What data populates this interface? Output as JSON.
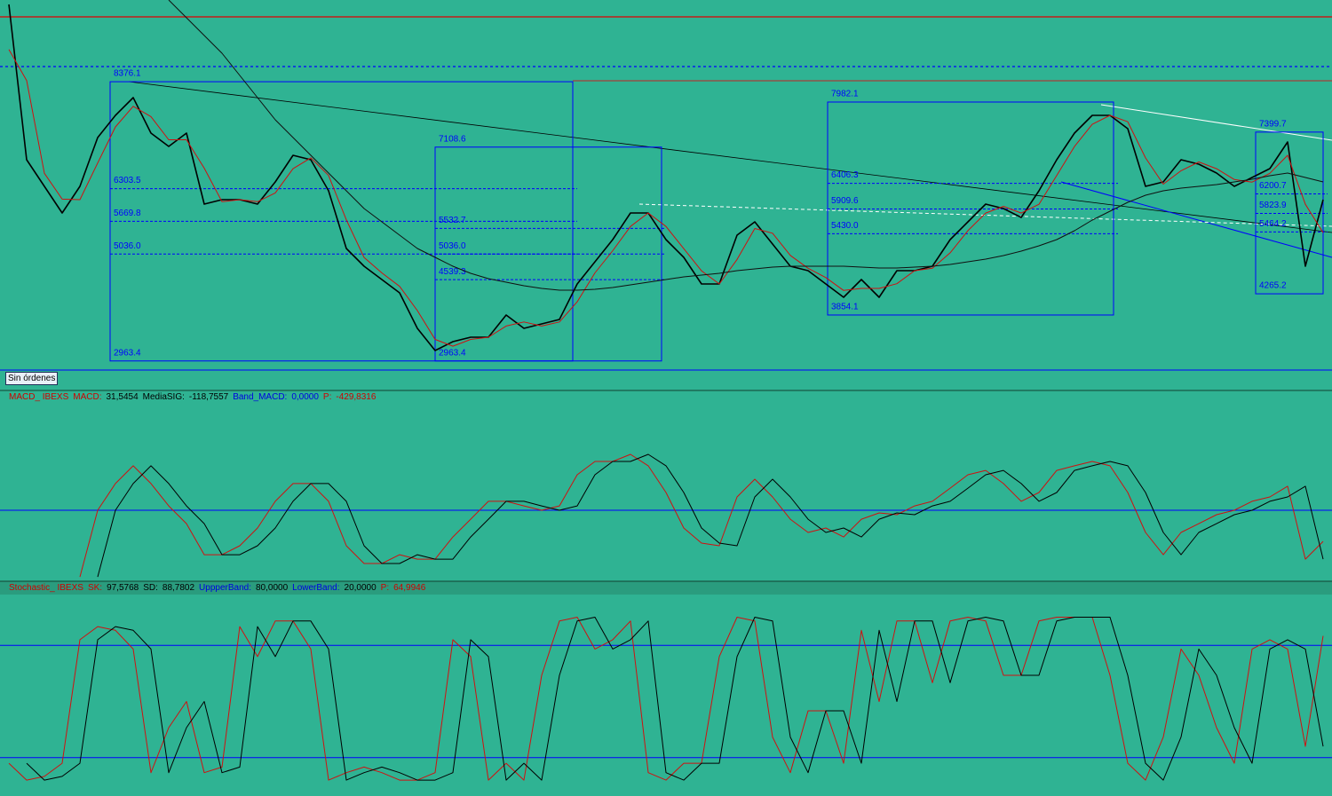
{
  "button_label": "Sin órdenes",
  "chart_data": [
    {
      "type": "line",
      "ylim": [
        2770,
        9960
      ],
      "series": [
        {
          "color": "#000000",
          "values": [
            9874,
            6864,
            6348,
            5832,
            6348,
            7294,
            7724,
            8068,
            7380,
            7122,
            7380,
            6004,
            6090,
            6090,
            6004,
            6434,
            6950,
            6864,
            6262,
            5144,
            4800,
            4542,
            4284,
            3596,
            3166,
            3338,
            3424,
            3424,
            3854,
            3596,
            3682,
            3768,
            4456,
            4886,
            5316,
            5832,
            5832,
            5316,
            4972,
            4456,
            4456,
            5402,
            5660,
            5230,
            4800,
            4714,
            4456,
            4198,
            4542,
            4198,
            4714,
            4714,
            4800,
            5316,
            5660,
            6004,
            5918,
            5746,
            6262,
            6864,
            7380,
            7724,
            7724,
            7466,
            6348,
            6434,
            6864,
            6778,
            6606,
            6348,
            6520,
            6692,
            7208,
            4800,
            6090
          ]
        },
        {
          "color": "#d01010",
          "values": [
            9000,
            8400,
            6600,
            6100,
            6090,
            6800,
            7500,
            7900,
            7700,
            7250,
            7250,
            6700,
            6050,
            6090,
            6050,
            6220,
            6690,
            6900,
            6560,
            5700,
            4970,
            4670,
            4410,
            3940,
            3380,
            3250,
            3380,
            3424,
            3640,
            3720,
            3640,
            3720,
            4110,
            4670,
            5100,
            5570,
            5832,
            5570,
            5140,
            4710,
            4456,
            4930,
            5530,
            5440,
            5010,
            4760,
            4580,
            4330,
            4370,
            4370,
            4460,
            4714,
            4760,
            5060,
            5490,
            5830,
            5960,
            5830,
            6000,
            6560,
            7120,
            7550,
            7724,
            7600,
            6900,
            6390,
            6650,
            6820,
            6690,
            6480,
            6430,
            6600,
            6950,
            6000,
            5450
          ]
        },
        {
          "color": "#101010",
          "values": [
            null,
            null,
            null,
            null,
            null,
            null,
            null,
            null,
            null,
            9960,
            9616,
            9272,
            8928,
            8498,
            8068,
            7638,
            7294,
            6950,
            6606,
            6262,
            5918,
            5660,
            5402,
            5144,
            4972,
            4800,
            4662,
            4559,
            4490,
            4422,
            4370,
            4336,
            4336,
            4353,
            4387,
            4439,
            4490,
            4542,
            4594,
            4628,
            4662,
            4714,
            4748,
            4783,
            4800,
            4800,
            4800,
            4800,
            4783,
            4766,
            4766,
            4783,
            4800,
            4834,
            4886,
            4938,
            5006,
            5092,
            5196,
            5316,
            5488,
            5694,
            5866,
            6038,
            6176,
            6262,
            6314,
            6348,
            6382,
            6434,
            6486,
            6554,
            6606,
            6520,
            6434
          ]
        }
      ],
      "hlines": [
        {
          "value": 9633,
          "color": "#e00000",
          "dashed": false
        },
        {
          "value": 8670,
          "color": "#0000ff",
          "dashed": true
        }
      ],
      "fib_boxes": [
        {
          "levels": [
            8376.1,
            6303.5,
            5669.8,
            {
              "value": 5036,
              "label": "5036.0"
            },
            2963.4
          ]
        },
        {
          "levels": [
            7108.6,
            5532.7,
            {
              "value": 5036,
              "label": "5036.0"
            },
            4539.3,
            2963.4
          ]
        },
        {
          "levels": [
            7982.1,
            6406.3,
            5909.6,
            {
              "value": 5430,
              "label": "5430.0"
            },
            3854.1
          ]
        },
        {
          "levels": [
            7399.7,
            6200.7,
            5823.9,
            5464.2,
            4265.2
          ]
        }
      ]
    },
    {
      "type": "line",
      "ylim": [
        -372,
        628
      ],
      "header": [
        {
          "text": "MACD_ IBEXS",
          "color": "#d00000"
        },
        {
          "text": "MACD:",
          "color": "#d00000"
        },
        {
          "value": 31.5454,
          "label": "31,5454",
          "color": "#000000"
        },
        {
          "text": "MediaSIG:",
          "color": "#000000"
        },
        {
          "value": -118.7557,
          "label": "-118,7557",
          "color": "#000000"
        },
        {
          "text": "Band_MACD:",
          "color": "#0000e0"
        },
        {
          "value": 0,
          "label": "0,0000",
          "color": "#0000e0"
        },
        {
          "text": "P:",
          "color": "#d00000"
        },
        {
          "value": -429.8316,
          "label": "-429,8316",
          "color": "#d00000"
        }
      ],
      "band_items": [
        6
      ],
      "series": [
        {
          "color": "#d01010",
          "values": [
            null,
            null,
            null,
            null,
            -349,
            0,
            140,
            233,
            140,
            23,
            -70,
            -233,
            -233,
            -186,
            -93,
            47,
            140,
            140,
            47,
            -186,
            -279,
            -279,
            -233,
            -256,
            -256,
            -140,
            -47,
            47,
            47,
            23,
            0,
            23,
            186,
            256,
            256,
            293,
            233,
            93,
            -93,
            -172,
            -186,
            70,
            163,
            70,
            -47,
            -116,
            -93,
            -140,
            -47,
            -14,
            -23,
            23,
            47,
            116,
            186,
            209,
            140,
            47,
            93,
            209,
            233,
            256,
            233,
            93,
            -116,
            -233,
            -116,
            -70,
            -23,
            0,
            47,
            70,
            126,
            -256,
            -163
          ]
        },
        {
          "color": "#000000",
          "values": [
            null,
            null,
            null,
            null,
            null,
            -349,
            0,
            140,
            233,
            140,
            23,
            -70,
            -233,
            -233,
            -186,
            -93,
            47,
            140,
            140,
            47,
            -186,
            -279,
            -279,
            -233,
            -256,
            -256,
            -140,
            -47,
            47,
            47,
            23,
            0,
            23,
            186,
            256,
            256,
            293,
            233,
            93,
            -93,
            -172,
            -186,
            70,
            163,
            70,
            -47,
            -116,
            -93,
            -140,
            -47,
            -14,
            -23,
            23,
            47,
            116,
            186,
            209,
            140,
            47,
            93,
            209,
            233,
            256,
            233,
            93,
            -116,
            -233,
            -116,
            -70,
            -23,
            0,
            47,
            70,
            126,
            -256
          ]
        }
      ]
    },
    {
      "type": "line",
      "ylim": [
        0,
        100
      ],
      "header": [
        {
          "text": "Stochastic_ IBEXS",
          "color": "#d00000"
        },
        {
          "text": "SK:",
          "color": "#d00000"
        },
        {
          "value": 97.5768,
          "label": "97,5768",
          "color": "#000000"
        },
        {
          "text": "SD:",
          "color": "#000000"
        },
        {
          "value": 88.7802,
          "label": "88,7802",
          "color": "#000000"
        },
        {
          "text": "UppperBand:",
          "color": "#0000e0"
        },
        {
          "value": 80,
          "label": "80,0000",
          "color": "#000000"
        },
        {
          "text": "LowerBand:",
          "color": "#0000e0"
        },
        {
          "value": 20,
          "label": "20,0000",
          "color": "#000000"
        },
        {
          "text": "P:",
          "color": "#d00000"
        },
        {
          "value": 64.9946,
          "label": "64,9946",
          "color": "#d00000"
        }
      ],
      "band_items": [
        6,
        8
      ],
      "series": [
        {
          "color": "#d01010",
          "values": [
            17,
            8,
            10,
            17,
            83,
            90,
            88,
            78,
            12,
            36,
            50,
            12,
            15,
            90,
            74,
            93,
            93,
            78,
            8,
            12,
            15,
            12,
            8,
            8,
            12,
            83,
            74,
            8,
            17,
            8,
            64,
            93,
            95,
            78,
            83,
            93,
            12,
            8,
            17,
            17,
            74,
            95,
            93,
            31,
            12,
            45,
            45,
            17,
            88,
            50,
            93,
            93,
            60,
            93,
            95,
            93,
            64,
            64,
            93,
            95,
            95,
            95,
            64,
            17,
            8,
            31,
            78,
            64,
            36,
            17,
            78,
            83,
            78,
            26,
            85
          ]
        },
        {
          "color": "#000000",
          "values": [
            null,
            17,
            8,
            10,
            17,
            83,
            90,
            88,
            78,
            12,
            36,
            50,
            12,
            15,
            90,
            74,
            93,
            93,
            78,
            8,
            12,
            15,
            12,
            8,
            8,
            12,
            83,
            74,
            8,
            17,
            8,
            64,
            93,
            95,
            78,
            83,
            93,
            12,
            8,
            17,
            17,
            74,
            95,
            93,
            31,
            12,
            45,
            45,
            17,
            88,
            50,
            93,
            93,
            60,
            93,
            95,
            93,
            64,
            64,
            93,
            95,
            95,
            95,
            64,
            17,
            8,
            31,
            78,
            64,
            36,
            17,
            78,
            83,
            78,
            26
          ]
        }
      ]
    }
  ]
}
